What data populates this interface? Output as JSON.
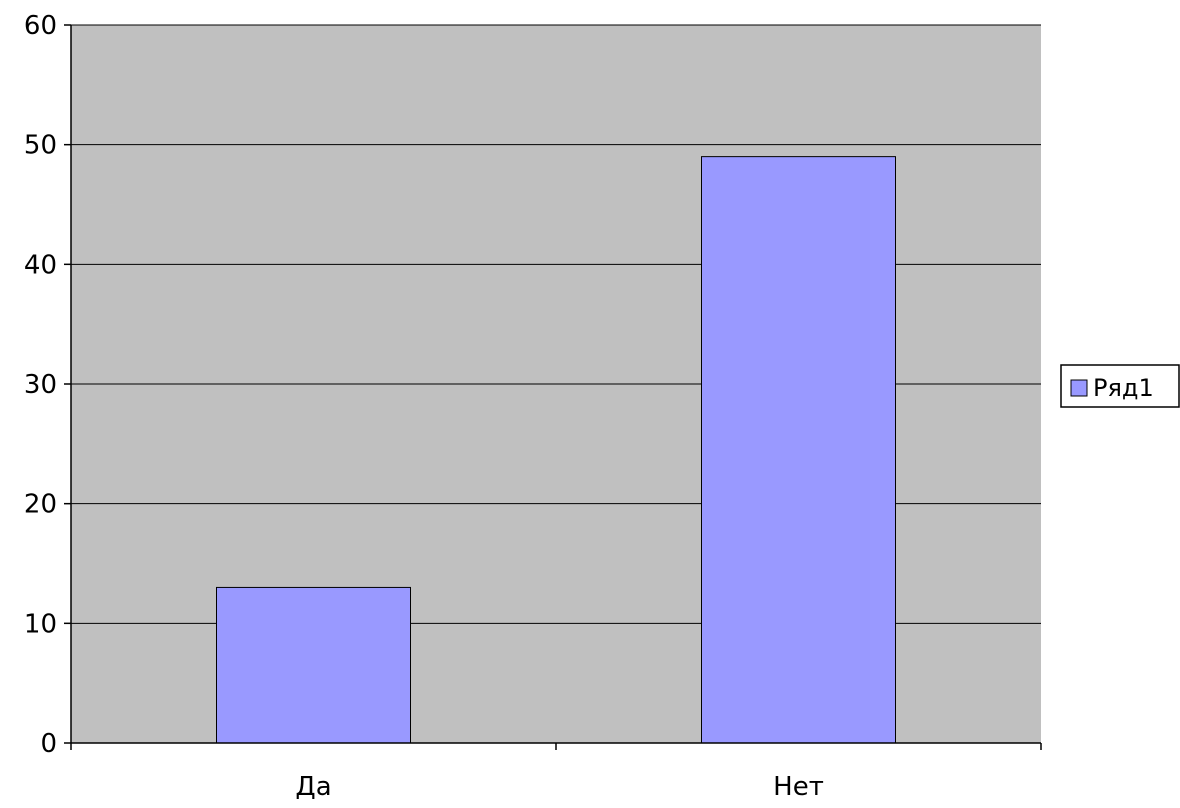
{
  "chart_data": {
    "type": "bar",
    "title": "",
    "xlabel": "",
    "ylabel": "",
    "categories": [
      "Да",
      "Нет"
    ],
    "series": [
      {
        "name": "Ряд1",
        "values": [
          13,
          49
        ]
      }
    ],
    "ylim": [
      0,
      60
    ],
    "yticks": [
      0,
      10,
      20,
      30,
      40,
      50,
      60
    ],
    "grid": true,
    "legend_position": "right",
    "colors": {
      "plot_background": "#c0c0c0",
      "bar_fill": "#9999ff",
      "bar_stroke": "#000000",
      "gridline": "#000000",
      "axis": "#000000"
    }
  }
}
